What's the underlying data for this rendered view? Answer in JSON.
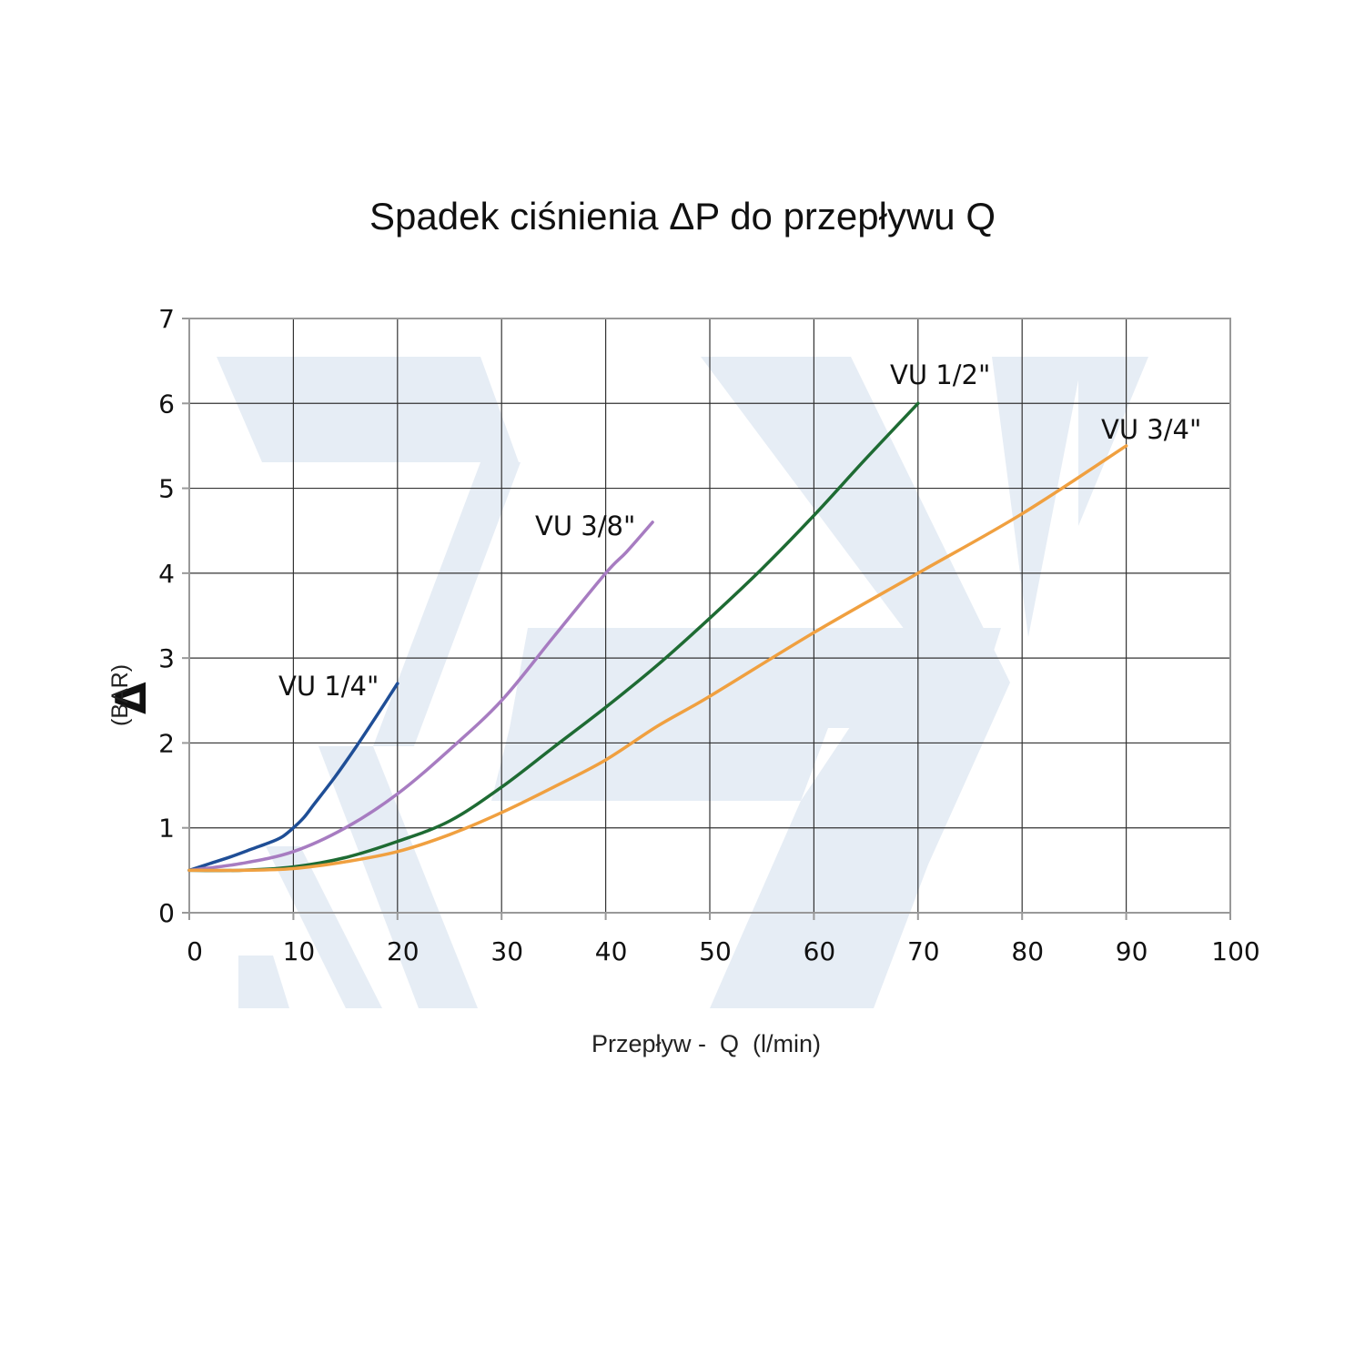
{
  "chart_data": {
    "type": "line",
    "title": "Spadek ciśnienia ΔP do przepływu Q",
    "xlabel": "Przepływ -  Q  (l/min)",
    "ylabel_symbol": "Δ",
    "ylabel_unit": "(BAR)",
    "xlim": [
      0,
      100
    ],
    "ylim": [
      0,
      7
    ],
    "x_ticks": [
      0,
      10,
      20,
      30,
      40,
      50,
      60,
      70,
      80,
      90,
      100
    ],
    "y_ticks": [
      0,
      1,
      2,
      3,
      4,
      5,
      6,
      7
    ],
    "x_tick_labels": [
      "0",
      "10",
      "20",
      "30",
      "40",
      "50",
      "60",
      "70",
      "80",
      "90",
      "100"
    ],
    "y_tick_labels": [
      "0",
      "1",
      "2",
      "3",
      "4",
      "5",
      "6",
      "7"
    ],
    "grid": true,
    "series": [
      {
        "name": "VU 1/4\"",
        "color": "#1f4e96",
        "x": [
          0,
          2,
          4,
          6,
          8,
          9,
          10,
          11,
          12,
          14,
          16,
          18,
          20
        ],
        "y": [
          0.5,
          0.58,
          0.66,
          0.75,
          0.84,
          0.9,
          1.0,
          1.12,
          1.28,
          1.6,
          1.95,
          2.32,
          2.7
        ]
      },
      {
        "name": "VU 3/8\"",
        "color": "#a77cc1",
        "x": [
          0,
          5,
          10,
          15,
          20,
          25,
          30,
          35,
          40,
          42,
          44.5
        ],
        "y": [
          0.5,
          0.58,
          0.72,
          1.0,
          1.4,
          1.92,
          2.5,
          3.25,
          4.0,
          4.25,
          4.6
        ]
      },
      {
        "name": "VU 1/2\"",
        "color": "#1e6b33",
        "x": [
          0,
          5,
          10,
          15,
          20,
          25,
          30,
          35,
          40,
          45,
          50,
          55,
          60,
          65,
          70
        ],
        "y": [
          0.5,
          0.5,
          0.54,
          0.65,
          0.84,
          1.08,
          1.48,
          1.95,
          2.42,
          2.92,
          3.47,
          4.05,
          4.68,
          5.35,
          6.0
        ]
      },
      {
        "name": "VU 3/4\"",
        "color": "#f0a040",
        "x": [
          0,
          5,
          10,
          15,
          20,
          25,
          30,
          35,
          40,
          45,
          50,
          60,
          70,
          80,
          90
        ],
        "y": [
          0.5,
          0.5,
          0.52,
          0.6,
          0.72,
          0.92,
          1.18,
          1.48,
          1.8,
          2.2,
          2.55,
          3.3,
          4.0,
          4.7,
          5.5
        ]
      }
    ]
  },
  "colors": {
    "watermark": "#e6edf5",
    "grid": "#333333",
    "frame": "#999999"
  }
}
